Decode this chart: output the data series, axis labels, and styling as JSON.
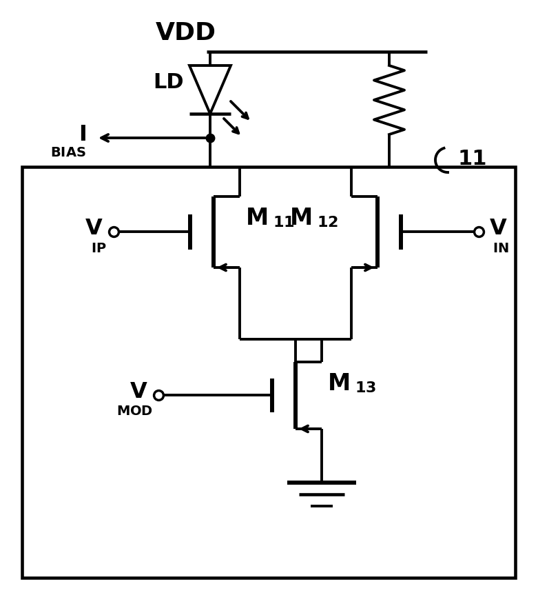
{
  "fig_width": 7.81,
  "fig_height": 8.63,
  "dpi": 100,
  "lw": 2.8,
  "bg_color": "#ffffff",
  "line_color": "#000000"
}
